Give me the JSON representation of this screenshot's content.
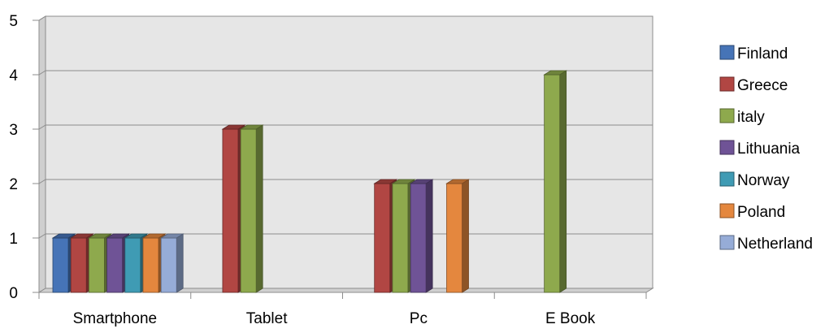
{
  "chart_data": {
    "type": "bar",
    "categories": [
      "Smartphone",
      "Tablet",
      "Pc",
      "E Book"
    ],
    "series": [
      {
        "name": "Finland",
        "color": "#4674b7",
        "values": [
          1,
          0,
          0,
          0
        ]
      },
      {
        "name": "Greece",
        "color": "#b14643",
        "values": [
          1,
          3,
          2,
          0
        ]
      },
      {
        "name": "italy",
        "color": "#8ea94d",
        "values": [
          1,
          3,
          2,
          4
        ]
      },
      {
        "name": "Lithuania",
        "color": "#6f5396",
        "values": [
          1,
          0,
          2,
          0
        ]
      },
      {
        "name": "Norway",
        "color": "#3f9bb4",
        "values": [
          1,
          0,
          0,
          0
        ]
      },
      {
        "name": "Poland",
        "color": "#e4873e",
        "values": [
          1,
          0,
          2,
          0
        ]
      },
      {
        "name": "Netherland",
        "color": "#96acd7",
        "values": [
          1,
          0,
          0,
          0
        ]
      }
    ],
    "ylim": [
      0,
      5
    ],
    "yticks": [
      "0",
      "1",
      "2",
      "3",
      "4",
      "5"
    ],
    "grid": true,
    "three_d": true,
    "legend_position": "right",
    "title": "",
    "xlabel": "",
    "ylabel": ""
  }
}
